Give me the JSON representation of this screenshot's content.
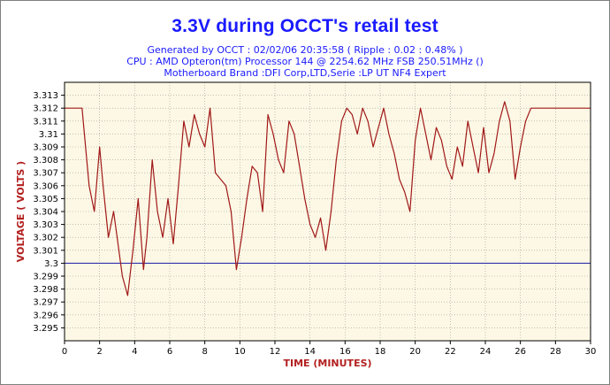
{
  "chart_data": {
    "type": "line",
    "title": "3.3V during OCCT's retail test",
    "subtitle": [
      "Generated by OCCT : 02/02/06 20:35:58 ( Ripple : 0.02 : 0.48% )",
      "CPU : AMD Opteron(tm) Processor 144    @ 2254.62 MHz FSB 250.51MHz ()",
      "Motherboard Brand :DFI Corp,LTD,Serie :LP UT NF4 Expert"
    ],
    "xlabel": "TIME (MINUTES)",
    "ylabel": "VOLTAGE ( VOLTS )",
    "xlim": [
      0,
      30
    ],
    "ylim": [
      3.294,
      3.314
    ],
    "xticks": [
      0,
      2,
      4,
      6,
      8,
      10,
      12,
      14,
      16,
      18,
      20,
      22,
      24,
      26,
      28,
      30
    ],
    "yticks": [
      3.295,
      3.296,
      3.297,
      3.298,
      3.299,
      3.3,
      3.301,
      3.302,
      3.303,
      3.304,
      3.305,
      3.306,
      3.307,
      3.308,
      3.309,
      3.31,
      3.311,
      3.312,
      3.313
    ],
    "grid": true,
    "colors": {
      "series": "#a01818",
      "reference": "#1a1aa8",
      "plot_bg": "#fdf8e5",
      "title": "#1a1aff",
      "axis_label": "#b32020"
    },
    "reference_line": 3.3,
    "series": [
      {
        "x": [
          0,
          1.0,
          1.4,
          1.7,
          2.0,
          2.2,
          2.5,
          2.8,
          3.0,
          3.3,
          3.6,
          3.9,
          4.2,
          4.5,
          4.7,
          5.0,
          5.3,
          5.6,
          5.9,
          6.2,
          6.5,
          6.8,
          7.1,
          7.4,
          7.7,
          8.0,
          8.3,
          8.6,
          8.9,
          9.2,
          9.5,
          9.8,
          10.1,
          10.4,
          10.7,
          11.0,
          11.3,
          11.6,
          11.9,
          12.2,
          12.5,
          12.8,
          13.1,
          13.4,
          13.7,
          14.0,
          14.3,
          14.6,
          14.9,
          15.2,
          15.5,
          15.8,
          16.1,
          16.4,
          16.7,
          17.0,
          17.3,
          17.6,
          17.9,
          18.2,
          18.5,
          18.8,
          19.1,
          19.4,
          19.7,
          20.0,
          20.3,
          20.6,
          20.9,
          21.2,
          21.5,
          21.8,
          22.1,
          22.4,
          22.7,
          23.0,
          23.3,
          23.6,
          23.9,
          24.2,
          24.5,
          24.8,
          25.1,
          25.4,
          25.7,
          26.0,
          26.3,
          26.6,
          27.0,
          28.0,
          29.0,
          30.0
        ],
        "y": [
          3.312,
          3.312,
          3.306,
          3.304,
          3.309,
          3.306,
          3.302,
          3.304,
          3.302,
          3.299,
          3.2975,
          3.301,
          3.305,
          3.2995,
          3.302,
          3.308,
          3.304,
          3.302,
          3.305,
          3.3015,
          3.306,
          3.311,
          3.309,
          3.3115,
          3.31,
          3.309,
          3.312,
          3.307,
          3.3065,
          3.306,
          3.304,
          3.2995,
          3.302,
          3.305,
          3.3075,
          3.307,
          3.304,
          3.3115,
          3.31,
          3.308,
          3.307,
          3.311,
          3.31,
          3.3075,
          3.305,
          3.303,
          3.302,
          3.3035,
          3.301,
          3.304,
          3.308,
          3.311,
          3.312,
          3.3115,
          3.31,
          3.312,
          3.311,
          3.309,
          3.3105,
          3.312,
          3.31,
          3.3085,
          3.3065,
          3.3055,
          3.304,
          3.3095,
          3.312,
          3.31,
          3.308,
          3.3105,
          3.3095,
          3.3075,
          3.3065,
          3.309,
          3.3075,
          3.311,
          3.309,
          3.307,
          3.3105,
          3.307,
          3.3085,
          3.311,
          3.3125,
          3.311,
          3.3065,
          3.309,
          3.311,
          3.312,
          3.312,
          3.312,
          3.312,
          3.312
        ]
      }
    ]
  }
}
